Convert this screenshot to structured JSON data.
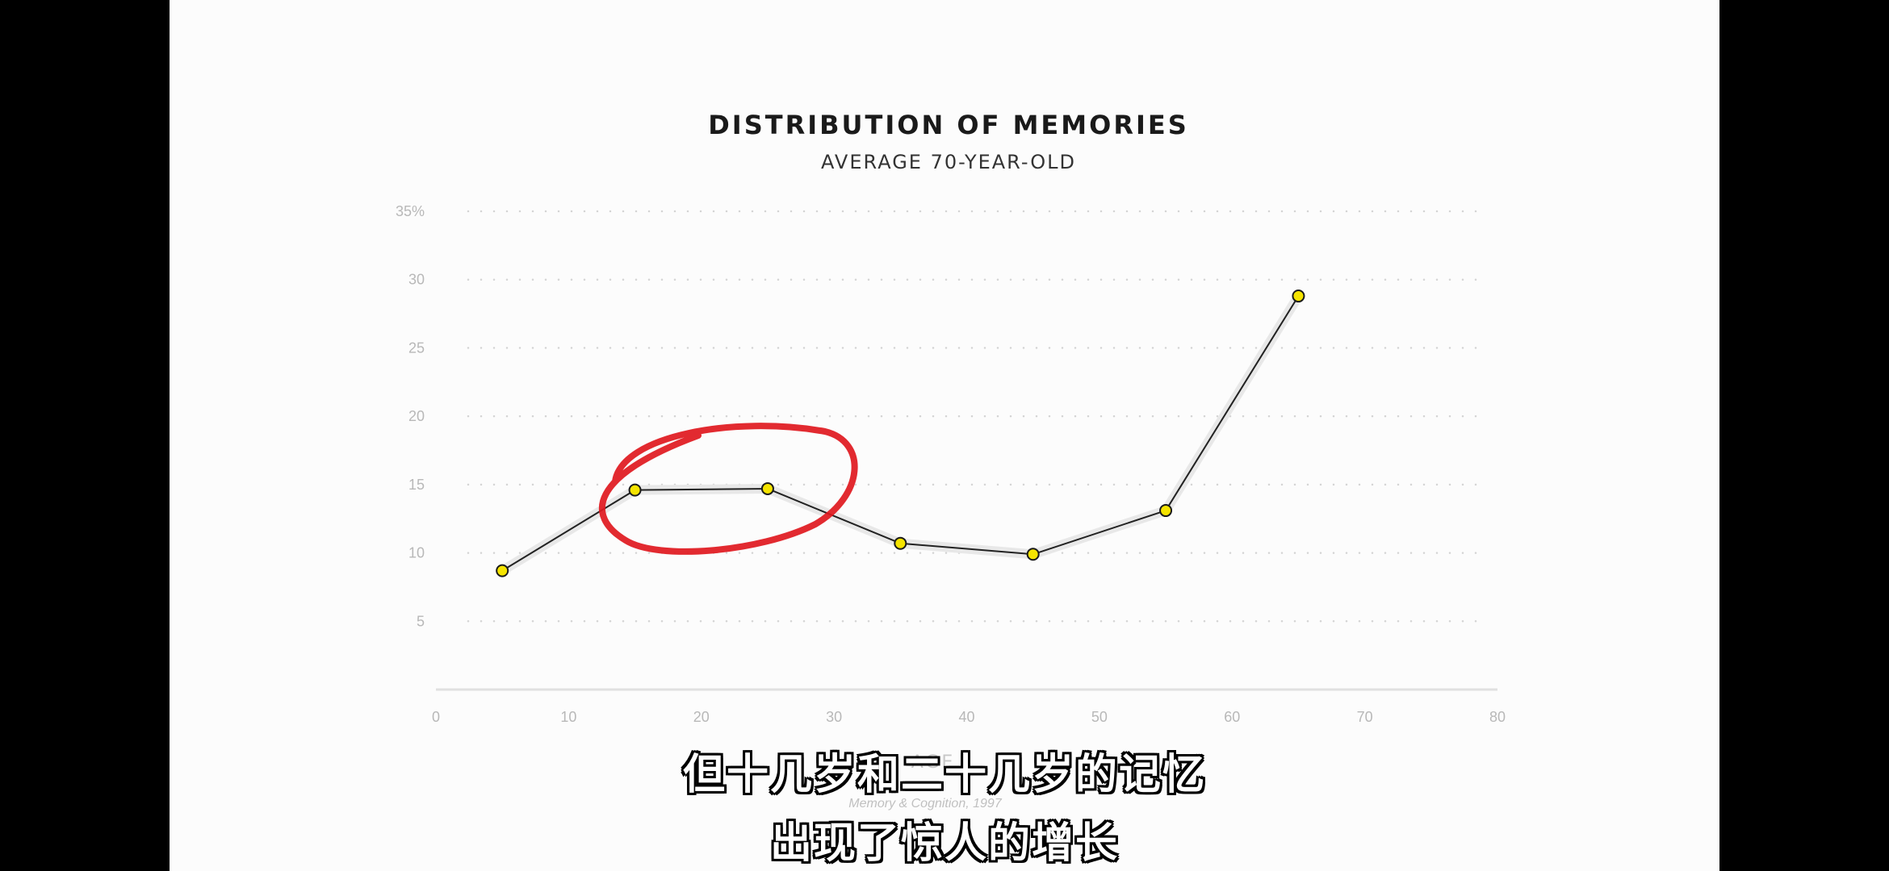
{
  "chart_data": {
    "type": "line",
    "title": "DISTRIBUTION OF MEMORIES",
    "subtitle": "AVERAGE 70-YEAR-OLD",
    "xlabel": "AGE",
    "source": "Memory & Cognition, 1997",
    "xlim": [
      0,
      80
    ],
    "ylim": [
      0,
      35
    ],
    "x_ticks": [
      "0",
      "10",
      "20",
      "30",
      "40",
      "50",
      "60",
      "70",
      "80"
    ],
    "y_ticks": [
      "5",
      "10",
      "15",
      "20",
      "25",
      "30",
      "35%"
    ],
    "grid": "dotted horizontal",
    "series": [
      {
        "x": [
          5,
          15,
          25,
          35,
          45,
          55,
          65
        ],
        "y": [
          8.7,
          14.6,
          14.7,
          10.7,
          9.9,
          13.1,
          28.8
        ]
      }
    ],
    "annotation": "red circle around ages 15–25",
    "colors": {
      "marker": "#f5e400",
      "line": "#222222",
      "annotation": "#e0181e"
    }
  },
  "captions": {
    "line1": "但十几岁和二十几岁的记忆",
    "line2": "出现了惊人的增长"
  }
}
